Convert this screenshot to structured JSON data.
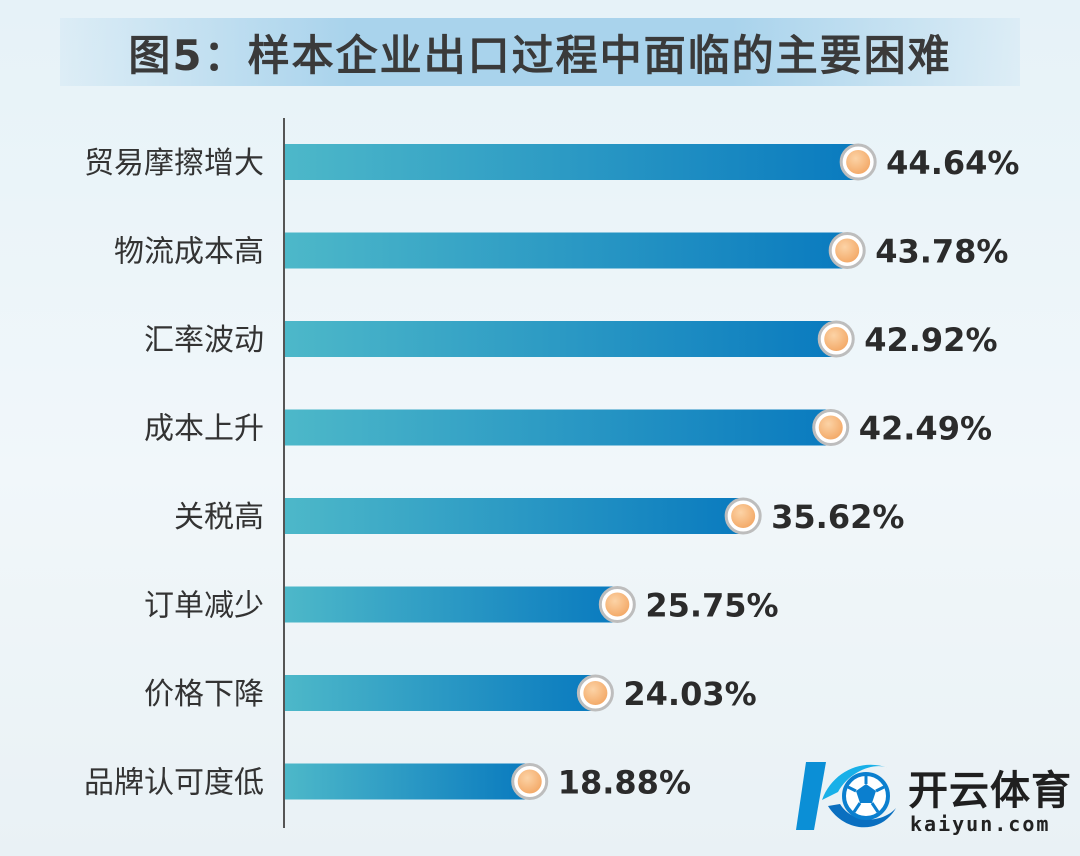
{
  "colors": {
    "bar_start": "#4db8c9",
    "bar_end": "#0a7bbf",
    "marker_fill": "#f3a866",
    "marker_ring": "#bdbdbd",
    "axis": "#555555"
  },
  "chart_data": {
    "type": "bar",
    "orientation": "horizontal",
    "title": "图5：样本企业出口过程中面临的主要困难",
    "xlabel": "",
    "ylabel": "",
    "xlim": [
      0,
      50
    ],
    "grid": false,
    "legend": "none",
    "categories": [
      "贸易摩擦增大",
      "物流成本高",
      "汇率波动",
      "成本上升",
      "关税高",
      "订单减少",
      "价格下降",
      "品牌认可度低"
    ],
    "values": [
      44.64,
      43.78,
      42.92,
      42.49,
      35.62,
      25.75,
      24.03,
      18.88
    ],
    "value_labels": [
      "44.64%",
      "43.78%",
      "42.92%",
      "42.49%",
      "35.62%",
      "25.75%",
      "24.03%",
      "18.88%"
    ]
  },
  "watermark": {
    "text_cn": "开云体育",
    "text_en": "kaiyun.com",
    "icon": "kaiyun-football-logo-icon"
  }
}
